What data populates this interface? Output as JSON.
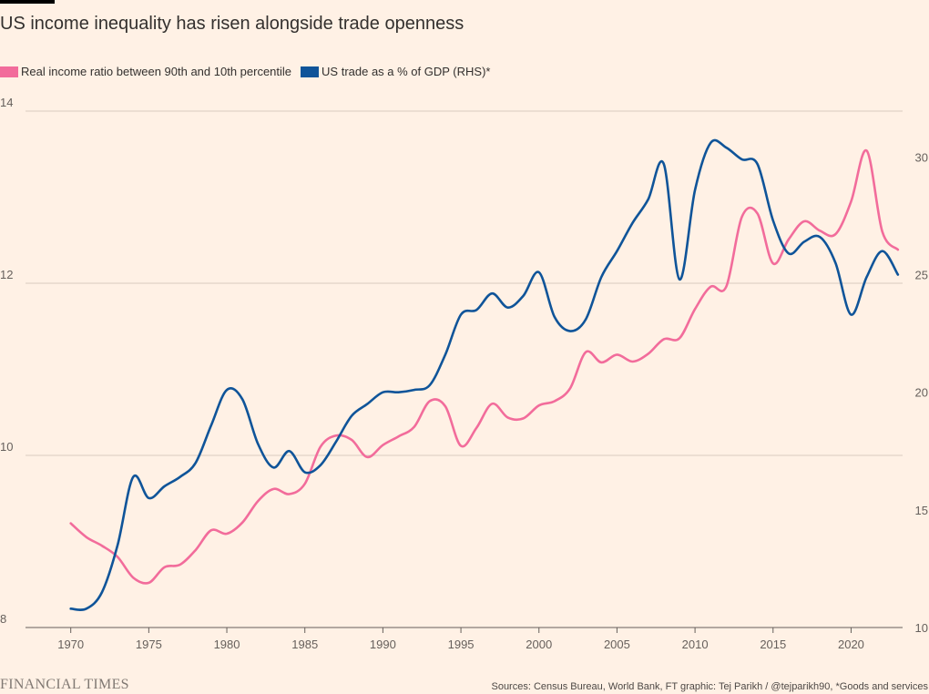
{
  "chart_data": {
    "type": "line",
    "title": "US income inequality has risen alongside trade openness",
    "legend_position": "top-left",
    "grid": true,
    "x": [
      1970,
      1971,
      1972,
      1973,
      1974,
      1975,
      1976,
      1977,
      1978,
      1979,
      1980,
      1981,
      1982,
      1983,
      1984,
      1985,
      1986,
      1987,
      1988,
      1989,
      1990,
      1991,
      1992,
      1993,
      1994,
      1995,
      1996,
      1997,
      1998,
      1999,
      2000,
      2001,
      2002,
      2003,
      2004,
      2005,
      2006,
      2007,
      2008,
      2009,
      2010,
      2011,
      2012,
      2013,
      2014,
      2015,
      2016,
      2017,
      2018,
      2019,
      2020,
      2021,
      2022,
      2023
    ],
    "x_ticks": [
      1970,
      1975,
      1980,
      1985,
      1990,
      1995,
      2000,
      2005,
      2010,
      2015,
      2020
    ],
    "xlim": [
      1967.1,
      2023.3
    ],
    "y_left": {
      "ticks": [
        8,
        10,
        12,
        14
      ],
      "lim": [
        8,
        14
      ]
    },
    "y_right": {
      "ticks": [
        10,
        15,
        20,
        25,
        30
      ],
      "lim": [
        10,
        31.95
      ]
    },
    "series": [
      {
        "name": "Real income ratio between 90th and 10th percentile",
        "axis": "left",
        "color": "#f26c9b",
        "values": [
          9.21,
          9.05,
          8.95,
          8.82,
          8.58,
          8.52,
          8.7,
          8.73,
          8.9,
          9.13,
          9.09,
          9.22,
          9.47,
          9.61,
          9.55,
          9.67,
          10.1,
          10.23,
          10.18,
          9.98,
          10.12,
          10.22,
          10.33,
          10.63,
          10.57,
          10.11,
          10.32,
          10.6,
          10.44,
          10.43,
          10.58,
          10.63,
          10.78,
          11.2,
          11.08,
          11.17,
          11.09,
          11.18,
          11.35,
          11.36,
          11.7,
          11.96,
          11.96,
          12.77,
          12.81,
          12.23,
          12.51,
          12.72,
          12.61,
          12.57,
          12.95,
          13.54,
          12.6,
          12.39
        ]
      },
      {
        "name": "US trade as a % of GDP (RHS)*",
        "axis": "right",
        "color": "#0f5499",
        "values": [
          10.8,
          10.8,
          11.5,
          13.5,
          16.4,
          15.5,
          16.0,
          16.4,
          17.0,
          18.6,
          20.1,
          19.7,
          17.8,
          16.8,
          17.5,
          16.6,
          16.9,
          17.9,
          19.0,
          19.5,
          20.0,
          20.0,
          20.1,
          20.3,
          21.6,
          23.3,
          23.5,
          24.2,
          23.6,
          24.1,
          25.1,
          23.2,
          22.6,
          23.1,
          24.9,
          26.0,
          27.2,
          28.2,
          29.7,
          24.8,
          28.6,
          30.6,
          30.4,
          29.9,
          29.7,
          27.3,
          25.9,
          26.4,
          26.6,
          25.5,
          23.3,
          24.9,
          26.0,
          25.0
        ]
      }
    ],
    "source": "Sources: Census Bureau, World Bank, FT graphic: Tej Parikh / @tejparikh90, *Goods and services"
  },
  "branding": "FINANCIAL TIMES"
}
